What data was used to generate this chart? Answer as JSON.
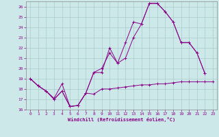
{
  "xlabel": "Windchill (Refroidissement éolien,°C)",
  "background_color": "#cde8e8",
  "grid_color": "#aacccc",
  "line_color": "#880088",
  "xlim": [
    -0.5,
    23.5
  ],
  "ylim": [
    16,
    26.5
  ],
  "xticks": [
    0,
    1,
    2,
    3,
    4,
    5,
    6,
    7,
    8,
    9,
    10,
    11,
    12,
    13,
    14,
    15,
    16,
    17,
    18,
    19,
    20,
    21,
    22,
    23
  ],
  "yticks": [
    16,
    17,
    18,
    19,
    20,
    21,
    22,
    23,
    24,
    25,
    26
  ],
  "series1_x": [
    0,
    1,
    2,
    3,
    4,
    5,
    6,
    7,
    8,
    9,
    10,
    11,
    12,
    13,
    14,
    15,
    16,
    17,
    18,
    19,
    20,
    21,
    22
  ],
  "series1_y": [
    19.0,
    18.3,
    17.8,
    17.1,
    18.5,
    16.3,
    16.4,
    17.6,
    19.6,
    19.6,
    22.0,
    20.5,
    22.5,
    24.5,
    24.3,
    26.3,
    26.3,
    25.5,
    24.5,
    22.5,
    22.5,
    21.5,
    19.5
  ],
  "series2_x": [
    0,
    1,
    2,
    3,
    4,
    5,
    6,
    7,
    8,
    9,
    10,
    11,
    12,
    13,
    14,
    15,
    16,
    17,
    18,
    19,
    20,
    21,
    22
  ],
  "series2_y": [
    19.0,
    18.3,
    17.8,
    17.0,
    17.8,
    16.3,
    16.4,
    17.6,
    19.6,
    20.0,
    21.5,
    20.5,
    21.0,
    23.0,
    24.3,
    26.3,
    26.3,
    25.5,
    24.5,
    22.5,
    22.5,
    21.5,
    19.5
  ],
  "series3_x": [
    0,
    1,
    2,
    3,
    4,
    5,
    6,
    7,
    8,
    9,
    10,
    11,
    12,
    13,
    14,
    15,
    16,
    17,
    18,
    19,
    20,
    21,
    22,
    23
  ],
  "series3_y": [
    19.0,
    18.3,
    17.8,
    17.0,
    17.8,
    16.3,
    16.4,
    17.6,
    17.5,
    18.0,
    18.0,
    18.1,
    18.2,
    18.3,
    18.4,
    18.4,
    18.5,
    18.5,
    18.6,
    18.7,
    18.7,
    18.7,
    18.7,
    18.7
  ]
}
